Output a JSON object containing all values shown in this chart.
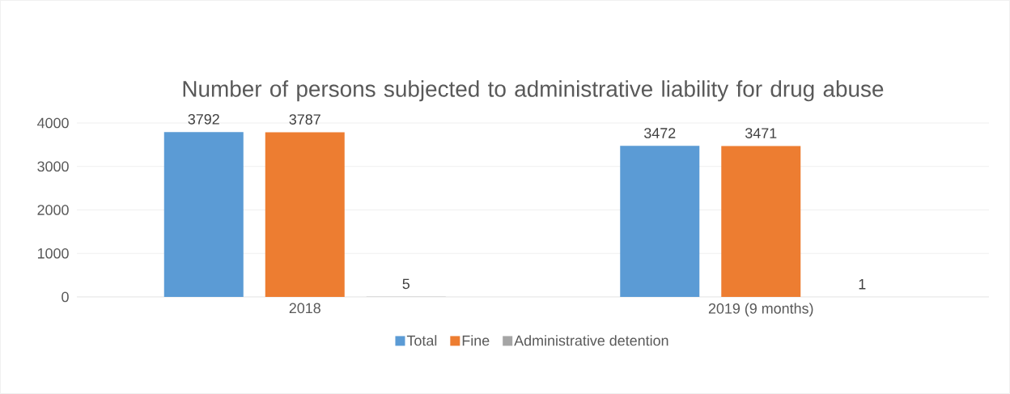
{
  "chart_data": {
    "type": "bar",
    "title": "Number of persons subjected to administrative liability for drug abuse",
    "categories": [
      "2018",
      "2019 (9 months)"
    ],
    "series": [
      {
        "name": "Total",
        "color": "#5b9bd5",
        "values": [
          3792,
          3472
        ]
      },
      {
        "name": "Fine",
        "color": "#ed7d31",
        "values": [
          3787,
          3471
        ]
      },
      {
        "name": "Administrative detention",
        "color": "#a5a5a5",
        "values": [
          5,
          1
        ]
      }
    ],
    "ylim": [
      0,
      4000
    ],
    "yticks": [
      0,
      1000,
      2000,
      3000,
      4000
    ],
    "grid": "y",
    "legend": "bottom",
    "data_labels": true
  }
}
